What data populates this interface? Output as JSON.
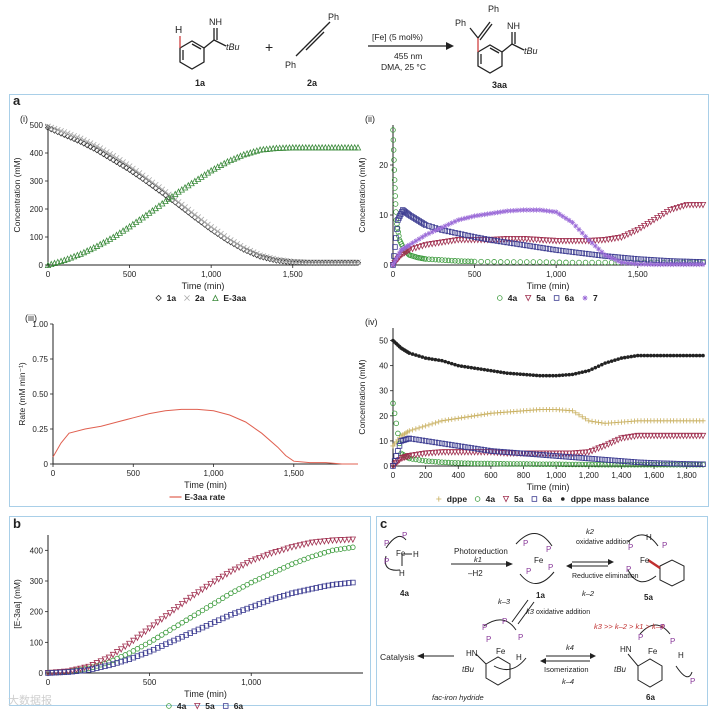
{
  "scheme": {
    "reactant1": "1a",
    "reactant2": "2a",
    "product": "3aa",
    "catalyst": "[Fe] (5 mol%)",
    "light": "455 nm",
    "conditions": "DMA, 25 °C",
    "nh_label": "NH",
    "tbu_label": "tBu",
    "h_label": "H",
    "ph_label": "Ph",
    "plus": "+"
  },
  "panel_a": {
    "label": "a"
  },
  "panel_b": {
    "label": "b"
  },
  "panel_c": {
    "label": "c"
  },
  "chart_data": [
    {
      "id": "a-i",
      "type": "scatter",
      "panel": "(i)",
      "xlabel": "Time (min)",
      "ylabel": "Concentration (mM)",
      "xlim": [
        0,
        1900
      ],
      "ylim": [
        0,
        500
      ],
      "xticks": [
        "0",
        "500",
        "1,000",
        "1,500"
      ],
      "yticks": [
        "0",
        "100",
        "200",
        "300",
        "400",
        "500"
      ],
      "xtick_values": [
        0,
        500,
        1000,
        1500
      ],
      "ytick_values": [
        0,
        100,
        200,
        300,
        400,
        500
      ],
      "legend": "bottom",
      "series": [
        {
          "name": "1a",
          "color": "#333333",
          "marker": "diamond",
          "x": [
            0,
            100,
            200,
            300,
            400,
            500,
            600,
            700,
            800,
            900,
            1000,
            1100,
            1200,
            1300,
            1400,
            1500,
            1600,
            1700,
            1800,
            1900
          ],
          "y": [
            490,
            465,
            440,
            410,
            375,
            340,
            300,
            258,
            215,
            170,
            127,
            88,
            55,
            30,
            16,
            10,
            8,
            8,
            8,
            8
          ]
        },
        {
          "name": "2a",
          "color": "#aaaaaa",
          "marker": "cross",
          "x": [
            0,
            100,
            200,
            300,
            400,
            500,
            600,
            700,
            800,
            900,
            1000,
            1100,
            1200,
            1300,
            1400,
            1500,
            1600,
            1700,
            1800,
            1900
          ],
          "y": [
            495,
            475,
            452,
            424,
            390,
            353,
            312,
            270,
            225,
            180,
            136,
            96,
            62,
            35,
            20,
            12,
            10,
            10,
            10,
            10
          ]
        },
        {
          "name": "E-3aa",
          "color": "#3a8a3a",
          "marker": "triangle",
          "x": [
            0,
            100,
            200,
            300,
            400,
            500,
            600,
            700,
            800,
            900,
            1000,
            1100,
            1200,
            1300,
            1400,
            1500,
            1600,
            1700,
            1800,
            1900
          ],
          "y": [
            0,
            18,
            40,
            68,
            100,
            138,
            178,
            220,
            262,
            300,
            338,
            370,
            395,
            412,
            418,
            420,
            420,
            420,
            420,
            420
          ]
        }
      ]
    },
    {
      "id": "a-ii",
      "type": "scatter",
      "panel": "(ii)",
      "xlabel": "Time (min)",
      "ylabel": "Concentration (mM)",
      "xlim": [
        0,
        1900
      ],
      "ylim": [
        0,
        28
      ],
      "xticks": [
        "0",
        "500",
        "1,000",
        "1,500"
      ],
      "yticks": [
        "0",
        "10",
        "20"
      ],
      "xtick_values": [
        0,
        500,
        1000,
        1500
      ],
      "ytick_values": [
        0,
        10,
        20
      ],
      "legend": "bottom",
      "series": [
        {
          "name": "4a",
          "color": "#3a9a3a",
          "marker": "circle",
          "x": [
            0,
            10,
            20,
            40,
            70,
            100,
            150,
            200,
            300,
            400,
            500,
            700,
            900,
            1100,
            1300,
            1500,
            1700,
            1900
          ],
          "y": [
            27,
            17,
            9,
            5,
            3,
            2,
            1.5,
            1.2,
            1,
            0.8,
            0.7,
            0.6,
            0.6,
            0.5,
            0.5,
            0.5,
            0.5,
            0.5
          ]
        },
        {
          "name": "5a",
          "color": "#a03050",
          "marker": "tri-down",
          "x": [
            0,
            50,
            100,
            200,
            300,
            400,
            500,
            600,
            700,
            800,
            900,
            1000,
            1100,
            1200,
            1300,
            1400,
            1500,
            1600,
            1700,
            1800,
            1900
          ],
          "y": [
            0,
            2,
            3,
            4,
            4.5,
            5,
            5,
            5,
            5.2,
            5.2,
            5,
            4.8,
            4.8,
            4.8,
            5,
            5.5,
            7,
            9,
            11,
            12,
            12
          ]
        },
        {
          "name": "6a",
          "color": "#3a3a90",
          "marker": "square",
          "x": [
            0,
            30,
            60,
            100,
            150,
            200,
            300,
            400,
            500,
            600,
            700,
            800,
            900,
            1000,
            1100,
            1200,
            1300,
            1400,
            1500,
            1600,
            1700,
            1800,
            1900
          ],
          "y": [
            0,
            9,
            11,
            10,
            9,
            8,
            7,
            6.3,
            5.6,
            5,
            4.5,
            4,
            3.5,
            3,
            2.6,
            2.2,
            1.8,
            1.5,
            1.2,
            1,
            0.8,
            0.7,
            0.6
          ]
        },
        {
          "name": "7",
          "color": "#9b6bd8",
          "marker": "star",
          "x": [
            0,
            50,
            100,
            200,
            300,
            400,
            500,
            600,
            700,
            800,
            900,
            1000,
            1100,
            1200,
            1300,
            1400,
            1500,
            1600,
            1700,
            1800,
            1900
          ],
          "y": [
            0,
            3,
            4,
            6,
            7.5,
            9,
            9.8,
            10.3,
            10.8,
            11,
            11,
            10.6,
            8.5,
            5,
            2,
            0.5,
            0.2,
            0.1,
            0.1,
            0.1,
            0.1
          ]
        }
      ]
    },
    {
      "id": "a-iii",
      "type": "line",
      "panel": "(iii)",
      "xlabel": "Time (min)",
      "ylabel": "Rate (mM min⁻¹)",
      "xlim": [
        0,
        1900
      ],
      "ylim": [
        0,
        1.0
      ],
      "xticks": [
        "0",
        "500",
        "1,000",
        "1,500"
      ],
      "yticks": [
        "0",
        "0.25",
        "0.50",
        "0.75",
        "1.00"
      ],
      "xtick_values": [
        0,
        500,
        1000,
        1500
      ],
      "ytick_values": [
        0,
        0.25,
        0.5,
        0.75,
        1.0
      ],
      "legend": "bottom",
      "series": [
        {
          "name": "E-3aa rate",
          "color": "#e06050",
          "x": [
            0,
            50,
            100,
            200,
            300,
            400,
            500,
            600,
            700,
            800,
            900,
            1000,
            1100,
            1200,
            1300,
            1400,
            1450,
            1500,
            1600,
            1700,
            1800,
            1900
          ],
          "y": [
            0.05,
            0.15,
            0.22,
            0.25,
            0.27,
            0.3,
            0.33,
            0.36,
            0.38,
            0.39,
            0.39,
            0.38,
            0.35,
            0.3,
            0.22,
            0.12,
            0.06,
            0.02,
            0.01,
            0.01,
            0,
            0
          ]
        }
      ]
    },
    {
      "id": "a-iv",
      "type": "scatter",
      "panel": "(iv)",
      "xlabel": "Time (min)",
      "ylabel": "Concentration (mM)",
      "xlim": [
        0,
        1900
      ],
      "ylim": [
        0,
        55
      ],
      "xticks": [
        "0",
        "200",
        "400",
        "600",
        "800",
        "1,000",
        "1,200",
        "1,400",
        "1,600",
        "1,800"
      ],
      "yticks": [
        "0",
        "10",
        "20",
        "30",
        "40",
        "50"
      ],
      "xtick_values": [
        0,
        200,
        400,
        600,
        800,
        1000,
        1200,
        1400,
        1600,
        1800
      ],
      "ytick_values": [
        0,
        10,
        20,
        30,
        40,
        50
      ],
      "legend": "bottom",
      "series": [
        {
          "name": "dppe",
          "color": "#c9b060",
          "marker": "plus",
          "x": [
            0,
            50,
            100,
            200,
            300,
            400,
            500,
            600,
            700,
            800,
            900,
            1000,
            1100,
            1200,
            1300,
            1400,
            1500,
            1600,
            1700,
            1800,
            1900
          ],
          "y": [
            8,
            12,
            14,
            16,
            18,
            19,
            20,
            21,
            21.5,
            22,
            22.5,
            22.5,
            22,
            18,
            17,
            17.5,
            18,
            18,
            18,
            18,
            18
          ]
        },
        {
          "name": "4a",
          "color": "#3a9a3a",
          "marker": "circle",
          "x": [
            0,
            50,
            100,
            200,
            300,
            400,
            500,
            600,
            700,
            800,
            900,
            1000,
            1100,
            1200,
            1300,
            1400,
            1500,
            1600,
            1700,
            1800,
            1900
          ],
          "y": [
            25,
            5,
            3,
            2,
            1.5,
            1.2,
            1,
            1,
            0.8,
            0.8,
            0.7,
            0.7,
            0.6,
            0.6,
            0.5,
            0.5,
            0.5,
            0.5,
            0.5,
            0.5,
            0.5
          ]
        },
        {
          "name": "5a",
          "color": "#a03050",
          "marker": "tri-down",
          "x": [
            0,
            50,
            100,
            200,
            300,
            400,
            500,
            600,
            700,
            800,
            900,
            1000,
            1100,
            1200,
            1300,
            1400,
            1500,
            1600,
            1700,
            1800,
            1900
          ],
          "y": [
            0,
            3,
            4,
            5,
            5.5,
            5.5,
            5.5,
            5.5,
            5,
            5,
            5,
            5,
            5,
            5.5,
            8,
            11,
            12,
            12,
            12,
            12,
            12
          ]
        },
        {
          "name": "6a",
          "color": "#3a3a90",
          "marker": "square",
          "x": [
            0,
            50,
            100,
            200,
            300,
            400,
            500,
            600,
            700,
            800,
            900,
            1000,
            1100,
            1200,
            1300,
            1400,
            1500,
            1600,
            1700,
            1800,
            1900
          ],
          "y": [
            0,
            10,
            11,
            10,
            9,
            8,
            7,
            6,
            5.5,
            5,
            4.5,
            4,
            3.5,
            3,
            2.5,
            2,
            1.5,
            1.2,
            1,
            0.8,
            0.7
          ]
        },
        {
          "name": "dppe mass balance",
          "color": "#222222",
          "marker": "dot",
          "x": [
            0,
            50,
            100,
            200,
            300,
            400,
            500,
            600,
            700,
            800,
            900,
            1000,
            1100,
            1200,
            1300,
            1400,
            1500,
            1600,
            1700,
            1800,
            1900
          ],
          "y": [
            50,
            47,
            45,
            43,
            42,
            40,
            39,
            38,
            37,
            36.5,
            36,
            36,
            36.5,
            38,
            41,
            43,
            44,
            44,
            44,
            44,
            44
          ]
        }
      ]
    },
    {
      "id": "b",
      "type": "scatter",
      "panel": "b",
      "xlabel": "Time (min)",
      "ylabel": "[E-3aa] (mM)",
      "xlim": [
        0,
        1550
      ],
      "ylim": [
        0,
        450
      ],
      "xticks": [
        "0",
        "500",
        "1,000"
      ],
      "yticks": [
        "0",
        "100",
        "200",
        "300",
        "400"
      ],
      "xtick_values": [
        0,
        500,
        1000
      ],
      "ytick_values": [
        0,
        100,
        200,
        300,
        400
      ],
      "legend": "bottom",
      "series": [
        {
          "name": "4a",
          "color": "#3a9a3a",
          "marker": "circle",
          "x": [
            0,
            100,
            200,
            300,
            400,
            500,
            600,
            700,
            800,
            900,
            1000,
            1100,
            1200,
            1300,
            1400,
            1500
          ],
          "y": [
            0,
            5,
            15,
            35,
            65,
            100,
            140,
            180,
            220,
            260,
            295,
            325,
            355,
            380,
            400,
            410
          ]
        },
        {
          "name": "5a",
          "color": "#a03050",
          "marker": "tri-down",
          "x": [
            0,
            100,
            200,
            300,
            400,
            500,
            600,
            700,
            800,
            900,
            1000,
            1100,
            1200,
            1300,
            1400,
            1500
          ],
          "y": [
            0,
            5,
            20,
            50,
            95,
            145,
            195,
            245,
            290,
            330,
            365,
            390,
            410,
            425,
            432,
            435
          ]
        },
        {
          "name": "6a",
          "color": "#3a3a90",
          "marker": "square",
          "x": [
            0,
            100,
            200,
            300,
            400,
            500,
            600,
            700,
            800,
            900,
            1000,
            1100,
            1200,
            1300,
            1400,
            1500
          ],
          "y": [
            0,
            3,
            10,
            25,
            45,
            70,
            100,
            130,
            160,
            190,
            215,
            240,
            260,
            275,
            288,
            295
          ]
        }
      ]
    }
  ],
  "mechanism": {
    "species_4a": "4a",
    "species_5a": "5a",
    "species_6a": "6a",
    "species_1a": "1a",
    "photoreduction": "Photoreduction",
    "k1": "k1",
    "minus_h2": "–H2",
    "k2": "k2",
    "oxidative_addition": "oxidative addition",
    "reductive_elimination": "Reductive elimination",
    "k_minus2": "k–2",
    "k3": "k3",
    "k_minus3": "k–3",
    "oxidative_addition_1a": "oxidative addition",
    "rate_order": "k3 >> k–2 > k1 > k–4",
    "catalysis": "Catalysis",
    "fac_label": "fac-iron hydride",
    "k4": "k4",
    "isomerization": "Isomerization",
    "k_minus4": "k–4",
    "fe": "Fe",
    "p": "P",
    "h": "H",
    "hn": "HN",
    "tbu": "tBu"
  },
  "watermark": "大数据报"
}
